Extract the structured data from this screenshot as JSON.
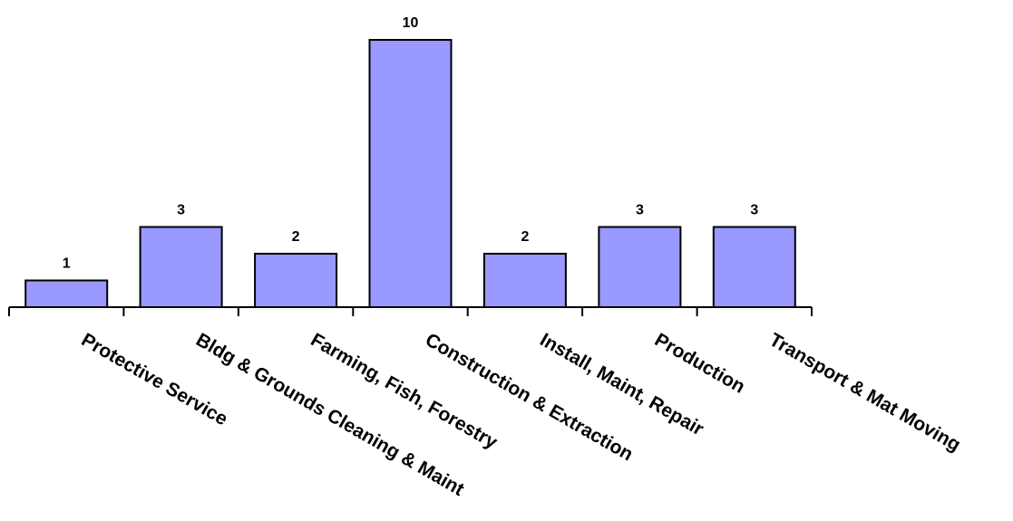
{
  "chart_data": {
    "type": "bar",
    "categories": [
      "Protective Service",
      "Bldg & Grounds Cleaning & Maint",
      "Farming, Fish, Forestry",
      "Construction & Extraction",
      "Install, Maint, Repair",
      "Production",
      "Transport & Mat Moving"
    ],
    "values": [
      1,
      3,
      2,
      10,
      2,
      3,
      3
    ],
    "data_labels": [
      "1",
      "3",
      "2",
      "10",
      "2",
      "3",
      "3"
    ],
    "title": "",
    "xlabel": "",
    "ylabel": "",
    "ylim": [
      0,
      10
    ],
    "grid": false,
    "legend": "none",
    "bar_color": "#9999ff",
    "bar_edge_color": "#000000",
    "x_tick_label_rotation_deg": 30
  }
}
